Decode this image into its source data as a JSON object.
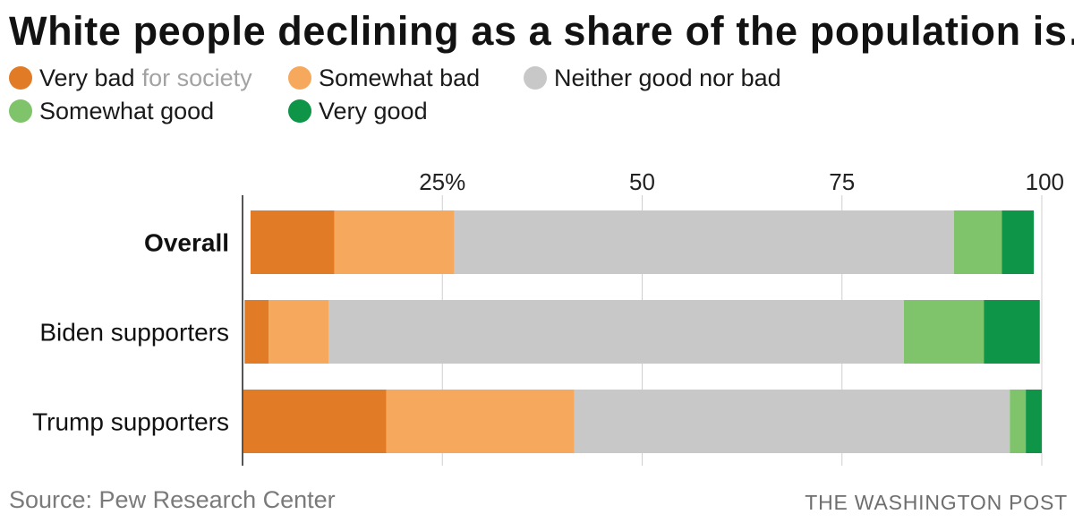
{
  "chart_data": {
    "type": "bar",
    "orientation": "horizontal",
    "stacked": true,
    "title": "White people declining as a share of the population is…",
    "legend_note": "for society",
    "categories": [
      "Overall",
      "Biden supporters",
      "Trump supporters"
    ],
    "series": [
      {
        "name": "Very bad",
        "color": "#e17b25",
        "values": [
          10.5,
          3,
          18
        ]
      },
      {
        "name": "Somewhat bad",
        "color": "#f6a95d",
        "values": [
          15,
          7.5,
          23.5
        ]
      },
      {
        "name": "Neither good nor bad",
        "color": "#c8c8c8",
        "values": [
          62.5,
          72,
          54.5
        ]
      },
      {
        "name": "Somewhat good",
        "color": "#7fc46b",
        "values": [
          6,
          10,
          2
        ]
      },
      {
        "name": "Very good",
        "color": "#0f9547",
        "values": [
          4,
          7,
          2
        ]
      }
    ],
    "xlim": [
      0,
      100
    ],
    "x_ticks": [
      {
        "value": 25,
        "label": "25%"
      },
      {
        "value": 50,
        "label": "50"
      },
      {
        "value": 75,
        "label": "75"
      },
      {
        "value": 100,
        "label": "100"
      }
    ],
    "grid": true,
    "legend_position": "top",
    "xlabel": "",
    "ylabel": ""
  },
  "footer": {
    "source": "Source: Pew Research Center",
    "credit": "THE WASHINGTON POST"
  }
}
